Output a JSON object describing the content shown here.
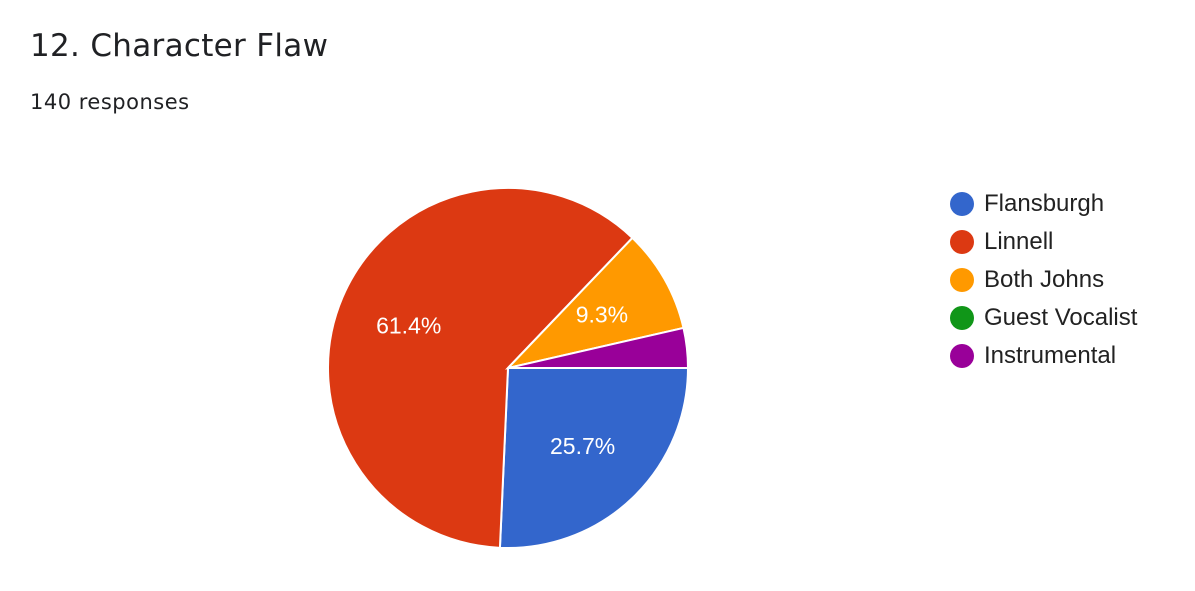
{
  "title": "12. Character Flaw",
  "responses": "140 responses",
  "chart_data": {
    "type": "pie",
    "categories": [
      "Flansburgh",
      "Linnell",
      "Both Johns",
      "Guest Vocalist",
      "Instrumental"
    ],
    "values": [
      36,
      86,
      13,
      0,
      5
    ],
    "labels": [
      "25.7%",
      "61.4%",
      "9.3%",
      "",
      ""
    ],
    "colors": [
      "#3366cc",
      "#dc3912",
      "#ff9900",
      "#109618",
      "#990099"
    ],
    "legend_position": "right"
  }
}
